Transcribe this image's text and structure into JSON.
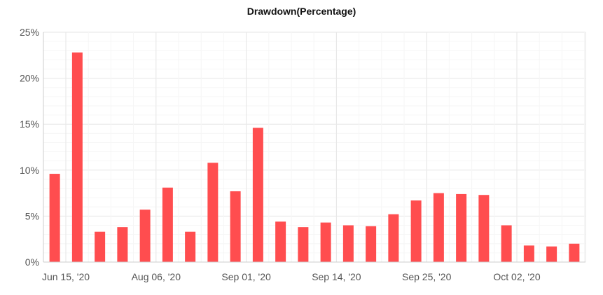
{
  "chart_data": {
    "type": "bar",
    "title": "Drawdown(Percentage)",
    "xlabel": "",
    "ylabel": "",
    "x_tick_labels": [
      "Jun 15, '20",
      "Aug 06, '20",
      "Sep 01, '20",
      "Sep 14, '20",
      "Sep 25, '20",
      "Oct 02, '20"
    ],
    "y_tick_labels": [
      "0%",
      "5%",
      "10%",
      "15%",
      "20%",
      "25%"
    ],
    "ylim": [
      0,
      25
    ],
    "grid": true,
    "bar_color": "#ff4d4f",
    "values": [
      9.6,
      22.8,
      3.3,
      3.8,
      5.7,
      8.1,
      3.3,
      10.8,
      7.7,
      14.6,
      4.4,
      3.8,
      4.3,
      4.0,
      3.9,
      5.2,
      6.7,
      7.5,
      7.4,
      7.3,
      4.0,
      1.8,
      1.7,
      2.0
    ]
  }
}
